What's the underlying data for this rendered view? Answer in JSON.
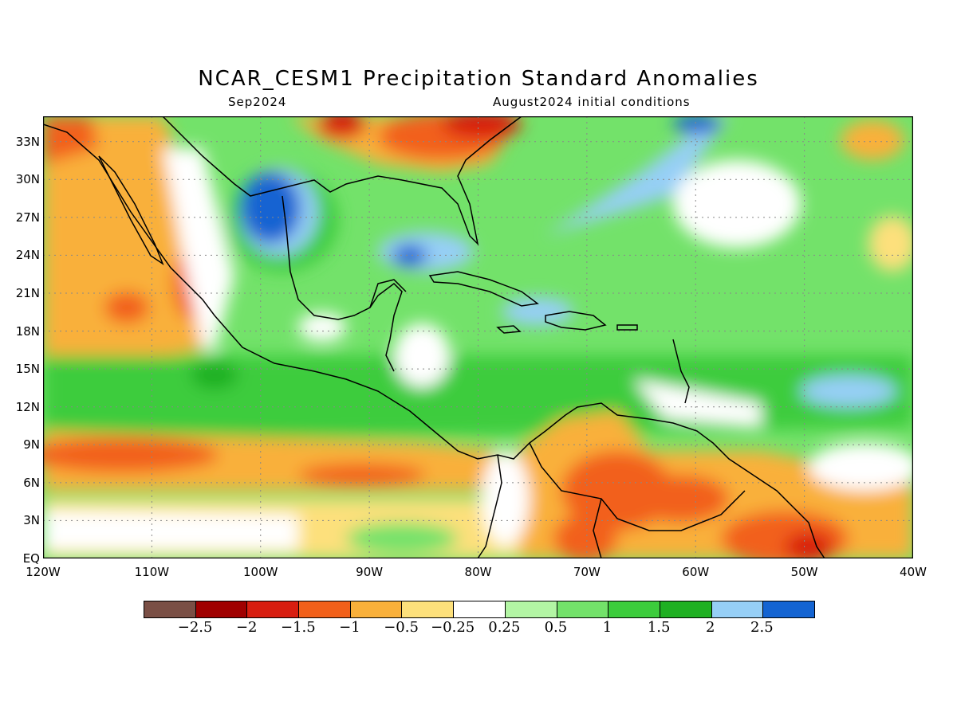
{
  "title": "NCAR_CESM1 Precipitation Standard Anomalies",
  "subtitle_left": "Sep2024",
  "subtitle_right": "August2024 initial conditions",
  "map": {
    "extent": {
      "lon": [
        -120,
        -40
      ],
      "lat": [
        0,
        35
      ]
    },
    "lat_ticks": [
      "33N",
      "30N",
      "27N",
      "24N",
      "21N",
      "18N",
      "15N",
      "12N",
      "9N",
      "6N",
      "3N",
      "EQ"
    ],
    "lat_values": [
      33,
      30,
      27,
      24,
      21,
      18,
      15,
      12,
      9,
      6,
      3,
      0
    ],
    "lon_ticks": [
      "120W",
      "110W",
      "100W",
      "90W",
      "80W",
      "70W",
      "60W",
      "50W",
      "40W"
    ],
    "lon_values": [
      -120,
      -110,
      -100,
      -90,
      -80,
      -70,
      -60,
      -50,
      -40
    ]
  },
  "colorbar": {
    "labels": [
      "-2.5",
      "-2",
      "-1.5",
      "-1",
      "-0.5",
      "-0.25",
      "0.25",
      "0.5",
      "1",
      "1.5",
      "2",
      "2.5"
    ],
    "colors": [
      "#7a4f45",
      "#a00000",
      "#d81e10",
      "#f2601a",
      "#f9b03a",
      "#fde07b",
      "#ffffff",
      "#b3f5a4",
      "#73e26a",
      "#3ccc3c",
      "#1fb022",
      "#96cff6",
      "#1464d2"
    ]
  }
}
